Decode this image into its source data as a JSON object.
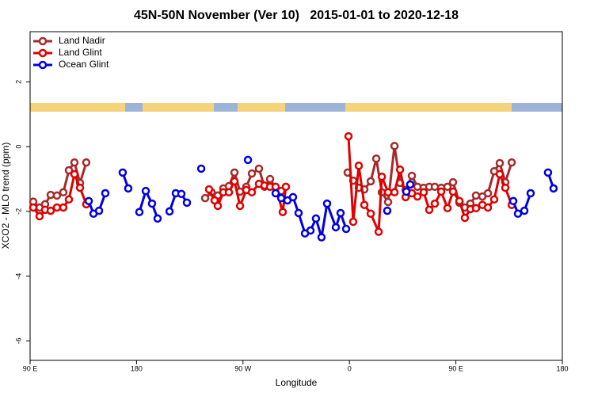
{
  "chart_data": {
    "type": "line",
    "title": "45N-50N November (Ver 10)   2015-01-01 to 2020-12-18",
    "x_label": "Longitude",
    "y_label": "XCO2 - MLO trend (ppm)",
    "xlim": [
      90,
      540
    ],
    "ylim": [
      -6.6,
      3.55
    ],
    "xticks": [
      {
        "value": 90,
        "label": "90 E"
      },
      {
        "value": 180,
        "label": "180"
      },
      {
        "value": 270,
        "label": "90 W"
      },
      {
        "value": 360,
        "label": "0"
      },
      {
        "value": 450,
        "label": "90 E"
      },
      {
        "value": 540,
        "label": "180"
      }
    ],
    "yticks": [
      2,
      0,
      -2,
      -4,
      -6
    ],
    "legend": "top-left",
    "series": [
      {
        "name": "Land Nadir",
        "color": "#a52a2a",
        "x": [
          92.7,
          98.0,
          102.7,
          107.4,
          112.7,
          118.1,
          122.8,
          127.5,
          132.2,
          137.5,
          null,
          238.0,
          243.4,
          248.7,
          253.4,
          258.1,
          262.8,
          267.5,
          272.8,
          277.5,
          283.5,
          288.2,
          292.9,
          297.6,
          302.3,
          null,
          358.5,
          363.2,
          367.9,
          372.6,
          378.0,
          382.7,
          387.4,
          392.7,
          398.1,
          402.8,
          407.5,
          412.8,
          417.5,
          422.8,
          427.5,
          432.2,
          437.6,
          442.9,
          447.6,
          453.0,
          457.6,
          462.3,
          467.0,
          472.4,
          477.1,
          482.4,
          487.1,
          491.8,
          497.2
        ],
        "values": [
          -1.7,
          -1.88,
          -1.78,
          -1.49,
          -1.51,
          -1.41,
          -0.73,
          -0.49,
          -1.12,
          -0.49,
          null,
          -1.59,
          -1.41,
          -1.51,
          -1.29,
          -1.22,
          -0.8,
          -1.39,
          -1.24,
          -0.83,
          -0.68,
          -1.24,
          -1.0,
          -1.27,
          -1.37,
          null,
          -0.8,
          -1.05,
          -1.27,
          -1.32,
          -1.07,
          -0.37,
          -1.41,
          -1.71,
          0.02,
          -1.12,
          -1.34,
          -0.9,
          -1.24,
          -1.27,
          -1.24,
          -1.24,
          -1.27,
          -1.24,
          -1.1,
          -1.73,
          -1.88,
          -1.76,
          -1.51,
          -1.54,
          -1.44,
          -0.76,
          -0.51,
          -1.1,
          -0.49
        ]
      },
      {
        "name": "Land Glint",
        "color": "#e00000",
        "x": [
          92.7,
          98.0,
          102.7,
          107.4,
          112.7,
          118.1,
          122.8,
          127.5,
          132.2,
          137.5,
          null,
          241.3,
          246.0,
          248.7,
          253.4,
          258.1,
          262.8,
          267.5,
          272.8,
          277.5,
          283.5,
          288.2,
          292.9,
          297.6,
          303.6,
          306.3,
          null,
          359.2,
          363.2,
          367.9,
          372.6,
          378.0,
          384.7,
          387.4,
          392.7,
          398.1,
          402.8,
          407.5,
          412.8,
          417.5,
          422.8,
          427.5,
          432.2,
          437.6,
          442.9,
          447.6,
          453.0,
          457.6,
          462.3,
          467.0,
          472.4,
          477.1,
          482.4,
          487.1,
          491.8,
          497.2
        ],
        "values": [
          -1.88,
          -2.15,
          -1.95,
          -1.98,
          -1.88,
          -1.88,
          -1.63,
          -0.85,
          -1.27,
          -1.78,
          null,
          -1.32,
          -1.66,
          -1.83,
          -1.41,
          -1.41,
          -1.07,
          -1.83,
          -1.34,
          -1.41,
          -1.15,
          -1.2,
          -1.24,
          -1.24,
          -2.02,
          -1.24,
          null,
          0.32,
          -2.32,
          -0.59,
          -1.8,
          -2.07,
          -2.63,
          -0.93,
          -1.41,
          -1.41,
          -0.71,
          -1.56,
          -1.44,
          -1.54,
          -1.41,
          -1.95,
          -1.76,
          -1.39,
          -1.9,
          -1.39,
          -1.68,
          -2.2,
          -1.93,
          -1.9,
          -1.8,
          -1.88,
          -1.63,
          -0.85,
          -1.27,
          -1.8
        ]
      },
      {
        "name": "Ocean Glint",
        "color": "#0000e0",
        "x": [
          139.6,
          143.6,
          148.3,
          153.6,
          null,
          168.3,
          173.0,
          null,
          182.4,
          187.8,
          193.1,
          197.8,
          null,
          207.9,
          213.2,
          217.9,
          222.6,
          null,
          234.7,
          null,
          274.2,
          null,
          297.6,
          302.3,
          307.6,
          312.3,
          317.0,
          322.4,
          327.1,
          331.7,
          336.4,
          341.1,
          348.5,
          352.5,
          357.2,
          null,
          392.0,
          null,
          408.1,
          411.4,
          null,
          498.5,
          502.5,
          507.9,
          513.2,
          null,
          527.9,
          532.6
        ],
        "values": [
          -1.68,
          -2.07,
          -1.98,
          -1.44,
          null,
          -0.8,
          -1.29,
          null,
          -2.02,
          -1.37,
          -1.76,
          -2.22,
          null,
          -2.0,
          -1.44,
          -1.46,
          -1.73,
          null,
          -0.68,
          null,
          -0.41,
          null,
          -1.44,
          -1.59,
          -1.66,
          -1.56,
          -2.05,
          -2.68,
          -2.59,
          -2.22,
          -2.8,
          -1.76,
          -2.49,
          -2.05,
          -2.54,
          null,
          -1.98,
          null,
          -1.39,
          -1.17,
          null,
          -1.68,
          -2.07,
          -1.98,
          -1.44,
          null,
          -0.8,
          -1.29
        ]
      }
    ]
  }
}
